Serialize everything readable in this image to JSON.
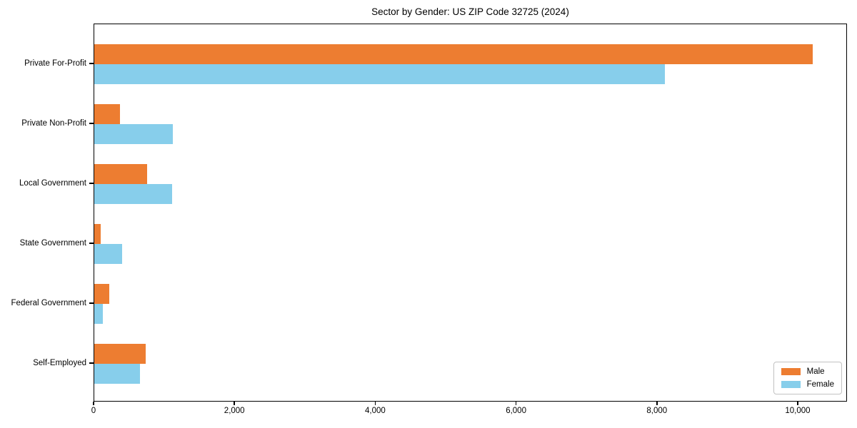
{
  "chart_data": {
    "type": "bar",
    "orientation": "horizontal",
    "title": "Sector by Gender: US ZIP Code 32725 (2024)",
    "categories": [
      "Private For-Profit",
      "Private Non-Profit",
      "Local Government",
      "State Government",
      "Federal Government",
      "Self-Employed"
    ],
    "series": [
      {
        "name": "Male",
        "color": "#ED7D31",
        "values": [
          10200,
          370,
          750,
          90,
          210,
          730
        ]
      },
      {
        "name": "Female",
        "color": "#87CEEB",
        "values": [
          8100,
          1120,
          1110,
          400,
          120,
          650
        ]
      }
    ],
    "xlim": [
      0,
      10700
    ],
    "x_ticks": [
      {
        "value": 0,
        "label": "0"
      },
      {
        "value": 2000,
        "label": "2,000"
      },
      {
        "value": 4000,
        "label": "4,000"
      },
      {
        "value": 6000,
        "label": "6,000"
      },
      {
        "value": 8000,
        "label": "8,000"
      },
      {
        "value": 10000,
        "label": "10,000"
      }
    ],
    "xlabel": "",
    "ylabel": "",
    "grid": false,
    "legend_position": "lower right",
    "background_color": "#ffffff",
    "spine_color": "#000000"
  }
}
